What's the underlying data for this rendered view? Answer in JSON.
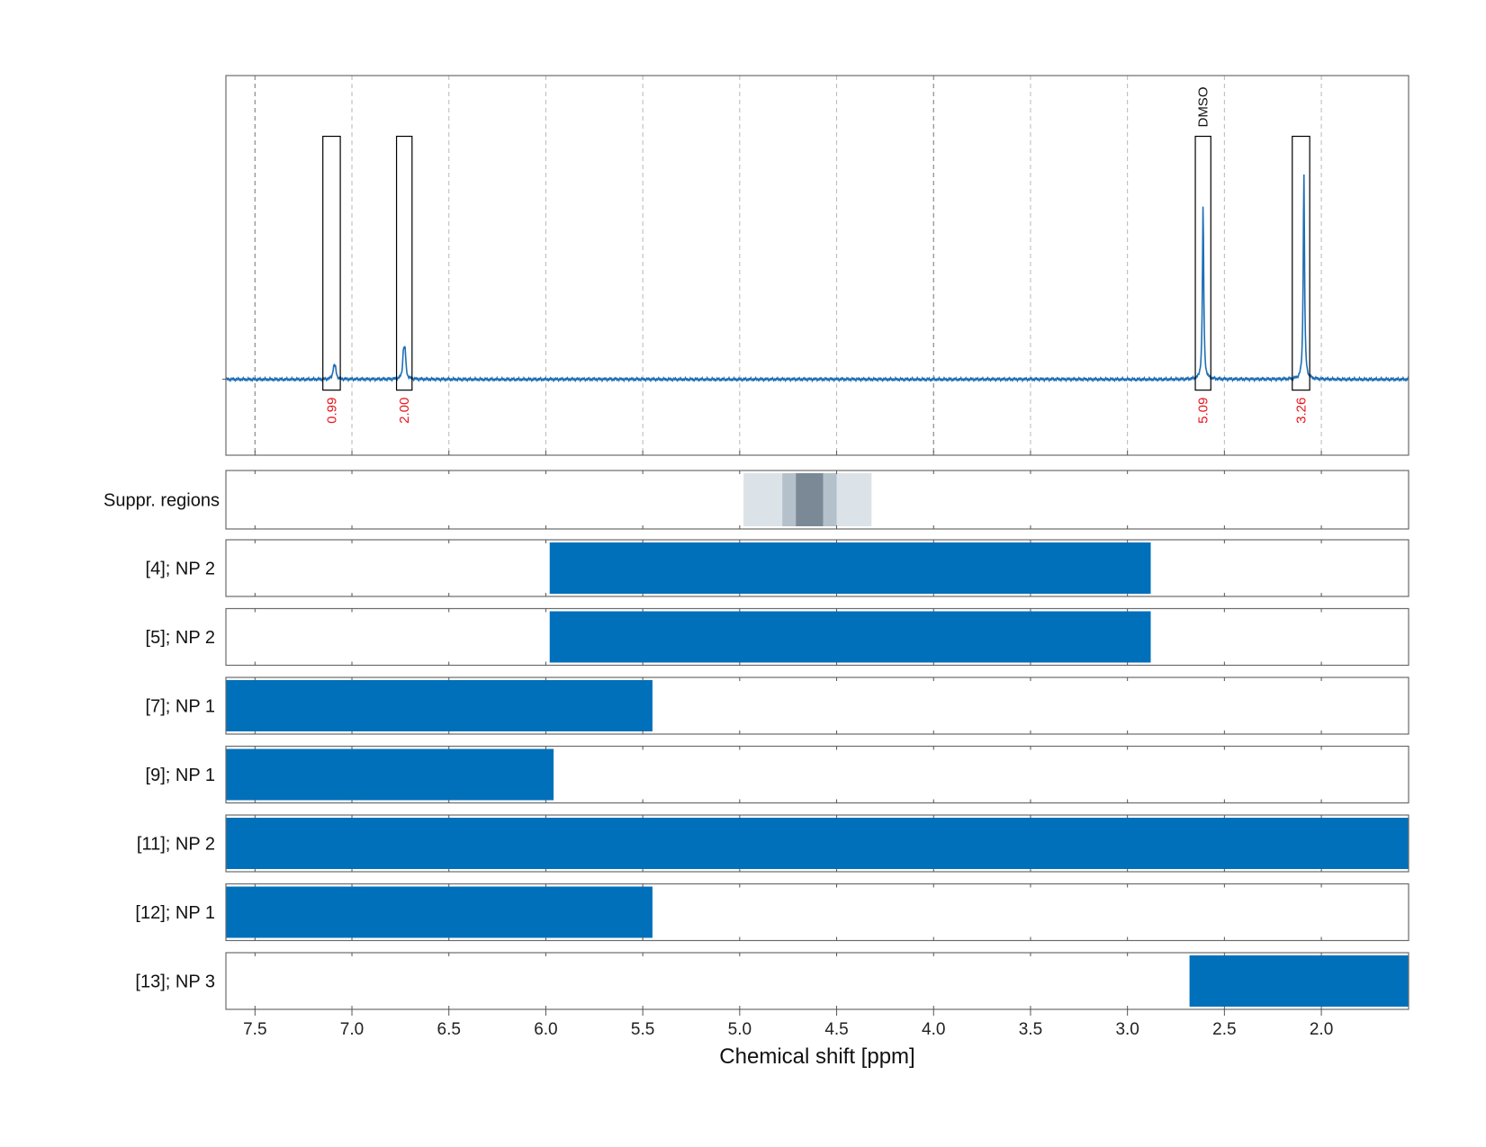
{
  "chart_data": {
    "type": "nmr_spectrum_with_region_bars",
    "xlabel": "Chemical shift [ppm]",
    "xlim": [
      7.65,
      1.55
    ],
    "x_reversed": true,
    "xticks": [
      7.5,
      7.0,
      6.5,
      6.0,
      5.5,
      5.0,
      4.5,
      4.0,
      3.5,
      3.0,
      2.5,
      2.0
    ],
    "xtick_labels": [
      "7.5",
      "7.0",
      "6.5",
      "6.0",
      "5.5",
      "5.0",
      "4.5",
      "4.0",
      "3.5",
      "3.0",
      "2.5",
      "2.0"
    ],
    "spectrum": {
      "line_color": "#1f6fb5",
      "peaks": [
        {
          "ppm": 7.09,
          "height": 0.09,
          "width": 0.006,
          "split": 0.008
        },
        {
          "ppm": 6.73,
          "height": 0.23,
          "width": 0.005,
          "split": 0.008
        },
        {
          "ppm": 2.61,
          "height": 0.8,
          "width": 0.004,
          "split": 0.0
        },
        {
          "ppm": 2.09,
          "height": 0.95,
          "width": 0.004,
          "split": 0.0
        }
      ],
      "y_range": [
        -0.35,
        1.4
      ]
    },
    "integration_regions": [
      {
        "from": 7.15,
        "to": 7.06,
        "integral": "0.99"
      },
      {
        "from": 6.77,
        "to": 6.69,
        "integral": "2.00"
      },
      {
        "from": 2.65,
        "to": 2.57,
        "integral": "5.09",
        "label": "DMSO"
      },
      {
        "from": 2.15,
        "to": 2.06,
        "integral": "3.26"
      }
    ],
    "integral_color": "#e8141c",
    "suppression": {
      "label": "Suppr. regions",
      "bands": [
        {
          "from": 4.98,
          "to": 4.32,
          "color": "#dbe2e8"
        },
        {
          "from": 4.78,
          "to": 4.5,
          "color": "#b4c1cb"
        },
        {
          "from": 4.71,
          "to": 4.57,
          "color": "#7b8996"
        }
      ]
    },
    "regions": [
      {
        "label": "[4]; NP 2",
        "from": 5.98,
        "to": 2.88
      },
      {
        "label": "[5]; NP 2",
        "from": 5.98,
        "to": 2.88
      },
      {
        "label": "[7]; NP 1",
        "from": 7.65,
        "to": 5.45
      },
      {
        "label": "[9]; NP 1",
        "from": 7.65,
        "to": 5.96
      },
      {
        "label": "[11]; NP 2",
        "from": 7.65,
        "to": 1.55
      },
      {
        "label": "[12]; NP 1",
        "from": 7.65,
        "to": 5.45
      },
      {
        "label": "[13]; NP 3",
        "from": 2.68,
        "to": 1.55
      }
    ],
    "bar_color": "#0070bb",
    "grid": true,
    "dark_gridlines_at": [
      7.5,
      4.0
    ]
  }
}
